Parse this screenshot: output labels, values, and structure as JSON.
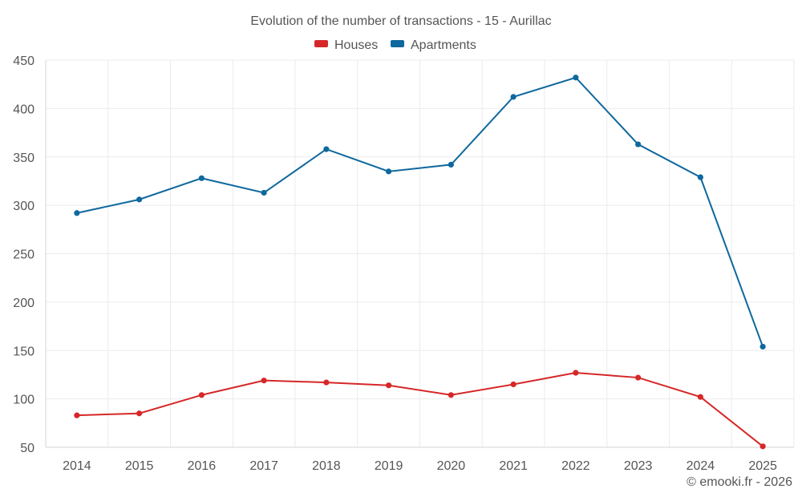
{
  "chart_data": {
    "type": "line",
    "title": "Evolution of the number of transactions - 15 - Aurillac",
    "categories": [
      "2014",
      "2015",
      "2016",
      "2017",
      "2018",
      "2019",
      "2020",
      "2021",
      "2022",
      "2023",
      "2024",
      "2025"
    ],
    "series": [
      {
        "name": "Houses",
        "color": "#d62728",
        "values": [
          83,
          85,
          104,
          119,
          117,
          114,
          104,
          115,
          127,
          122,
          102,
          51
        ]
      },
      {
        "name": "Apartments",
        "color": "#0f689e",
        "values": [
          292,
          306,
          328,
          313,
          358,
          335,
          342,
          412,
          432,
          363,
          329,
          154
        ]
      }
    ],
    "yticks": [
      50,
      100,
      150,
      200,
      250,
      300,
      350,
      400,
      450
    ],
    "ylim": [
      50,
      450
    ],
    "xlabel": "",
    "ylabel": "",
    "legend_position": "top-center",
    "grid": true
  },
  "credit": "© emooki.fr - 2026"
}
